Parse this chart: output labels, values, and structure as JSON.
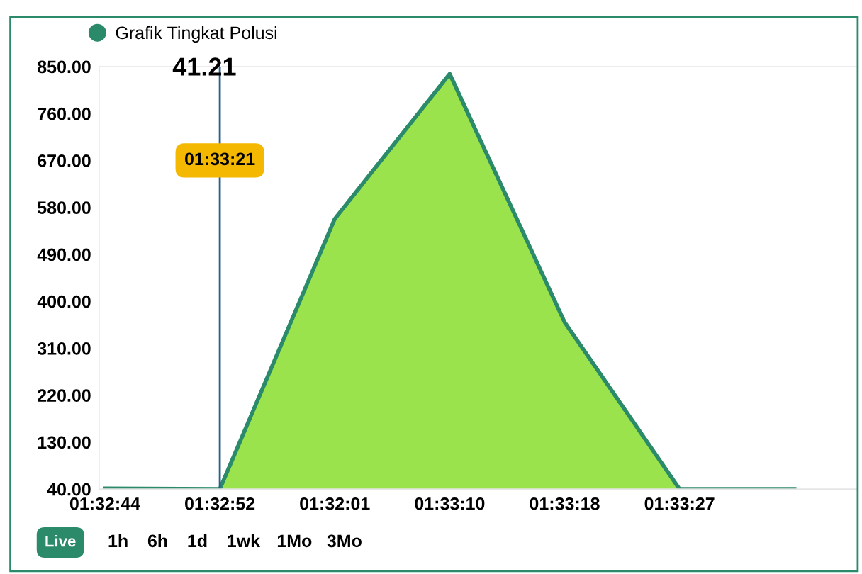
{
  "chart_data": {
    "type": "area",
    "categories": [
      "01:32:44",
      "01:32:52",
      "01:32:01",
      "01:33:10",
      "01:33:18",
      "01:33:27",
      null
    ],
    "series": [
      {
        "name": "Grafik Tingkat Polusi",
        "color": "#2a8a6a",
        "values": [
          41,
          40,
          558,
          836,
          360,
          40,
          40
        ]
      }
    ],
    "ylim": [
      40,
      850
    ],
    "yticks": [
      {
        "value": 40,
        "label": "40.00"
      },
      {
        "value": 130,
        "label": "130.00"
      },
      {
        "value": 220,
        "label": "220.00"
      },
      {
        "value": 310,
        "label": "310.00"
      },
      {
        "value": 400,
        "label": "400.00"
      },
      {
        "value": 490,
        "label": "490.00"
      },
      {
        "value": 580,
        "label": "580.00"
      },
      {
        "value": 670,
        "label": "670.00"
      },
      {
        "value": 760,
        "label": "760.00"
      },
      {
        "value": 850,
        "label": "850.00"
      }
    ],
    "ref_lines": [
      {
        "axis": "x",
        "value": "01:32:52",
        "label": "01:33:21",
        "color": "#2b5f8a"
      }
    ],
    "annotations": [
      "41.21",
      "Live",
      "1h",
      "6h",
      "1d",
      "1wk",
      "1Mo",
      "3Mo"
    ],
    "grid": false,
    "legend": "top left"
  }
}
